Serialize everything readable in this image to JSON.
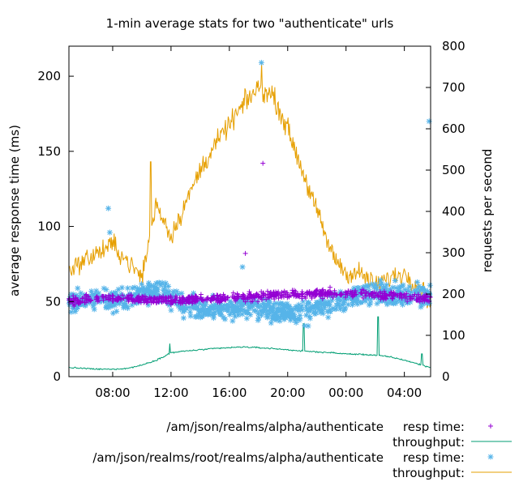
{
  "chart_data": {
    "type": "line",
    "title": "1-min average stats for two \"authenticate\" urls",
    "xlabel": "",
    "ylabel": "average response time (ms)",
    "y2label": "requests per second",
    "x_tick_labels": [
      "08:00",
      "12:00",
      "16:00",
      "20:00",
      "00:00",
      "04:00"
    ],
    "x_tick_hours": [
      8,
      12,
      16,
      20,
      24,
      28
    ],
    "x_range_hours": [
      5,
      29.8
    ],
    "ylim": [
      0,
      220
    ],
    "y_ticks": [
      0,
      50,
      100,
      150,
      200
    ],
    "y2lim": [
      0,
      800
    ],
    "y2_ticks": [
      0,
      100,
      200,
      300,
      400,
      500,
      600,
      700,
      800
    ],
    "legend_position": "bottom",
    "legend": [
      {
        "url": "/am/json/realms/alpha/authenticate",
        "resp_label": "resp time:",
        "tp_label": "throughput:",
        "resp_color": "#9400d3",
        "tp_color": "#009e73",
        "resp_marker": "+"
      },
      {
        "url": "/am/json/realms/root/realms/alpha/authenticate",
        "resp_label": "resp time:",
        "tp_label": "throughput:",
        "resp_color": "#56b4e9",
        "tp_color": "#e69f00",
        "resp_marker": "*"
      }
    ],
    "series": [
      {
        "name": "alpha resp time",
        "axis": "y1",
        "style": "points-plus",
        "color": "#9400d3",
        "x": [
          5,
          7,
          9,
          11,
          13,
          15,
          17,
          19,
          21,
          23,
          25,
          27,
          29.5
        ],
        "y": [
          50,
          52,
          52,
          51,
          51,
          52,
          53,
          54,
          55,
          56,
          55,
          54,
          52
        ],
        "outliers": [
          {
            "x": 18.3,
            "y": 142
          },
          {
            "x": 17.1,
            "y": 82
          }
        ]
      },
      {
        "name": "alpha throughput",
        "axis": "y2",
        "style": "line",
        "color": "#009e73",
        "x": [
          5,
          6,
          7,
          8,
          9,
          10,
          11,
          12,
          13,
          14,
          15,
          16,
          17,
          18,
          19,
          20,
          21,
          22,
          23,
          24,
          25,
          26,
          27,
          28,
          29,
          29.8
        ],
        "y": [
          22,
          20,
          18,
          18,
          20,
          28,
          40,
          58,
          62,
          65,
          68,
          70,
          72,
          70,
          68,
          65,
          62,
          60,
          58,
          55,
          54,
          52,
          48,
          40,
          30,
          22
        ],
        "spikes": [
          {
            "x": 11.9,
            "y": 80
          },
          {
            "x": 21.1,
            "y": 128
          },
          {
            "x": 26.2,
            "y": 145
          },
          {
            "x": 29.2,
            "y": 55
          }
        ]
      },
      {
        "name": "alpha/root resp time",
        "axis": "y1",
        "style": "points-star",
        "color": "#56b4e9",
        "x": [
          5,
          7,
          9,
          11,
          13,
          15,
          17,
          19,
          21,
          23,
          25,
          27,
          29.5
        ],
        "y": [
          50,
          50,
          52,
          58,
          46,
          46,
          46,
          44,
          42,
          48,
          56,
          55,
          54
        ],
        "outliers": [
          {
            "x": 18.2,
            "y": 209
          },
          {
            "x": 29.7,
            "y": 170
          },
          {
            "x": 7.7,
            "y": 112
          },
          {
            "x": 7.8,
            "y": 96
          },
          {
            "x": 16.9,
            "y": 73
          }
        ]
      },
      {
        "name": "alpha/root throughput",
        "axis": "y2",
        "style": "line",
        "color": "#e69f00",
        "x": [
          5,
          6,
          7,
          8,
          9,
          10,
          11,
          12,
          13,
          14,
          15,
          16,
          17,
          18,
          19,
          20,
          21,
          22,
          23,
          24,
          25,
          26,
          27,
          28,
          29,
          29.8
        ],
        "y": [
          260,
          280,
          300,
          320,
          280,
          240,
          420,
          340,
          420,
          500,
          560,
          610,
          660,
          700,
          680,
          600,
          500,
          400,
          300,
          250,
          250,
          220,
          240,
          250,
          220,
          180
        ],
        "spikes": [
          {
            "x": 18.2,
            "y": 760
          },
          {
            "x": 10.6,
            "y": 520
          }
        ]
      }
    ]
  }
}
